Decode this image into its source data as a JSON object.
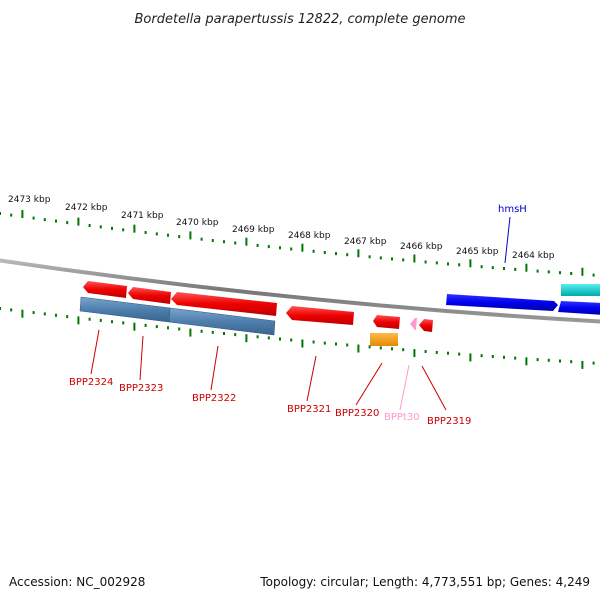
{
  "map": {
    "title": "Bordetella parapertussis 12822, complete genome",
    "footer": {
      "accession": "Accession: NC_002928",
      "summary": "Topology: circular; Length: 4,773,551 bp; Genes: 4,249"
    },
    "ruler_labels": [
      "2473 kbp",
      "2472 kbp",
      "2471 kbp",
      "2470 kbp",
      "2469 kbp",
      "2468 kbp",
      "2467 kbp",
      "2466 kbp",
      "2465 kbp",
      "2464 kbp"
    ],
    "features": [
      {
        "label": "BPP2324",
        "color": "#cc0000",
        "strand": "minus"
      },
      {
        "label": "BPP2323",
        "color": "#cc0000",
        "strand": "minus"
      },
      {
        "label": "BPP2322",
        "color": "#cc0000",
        "strand": "minus"
      },
      {
        "label": "BPP2321",
        "color": "#cc0000",
        "strand": "minus"
      },
      {
        "label": "BPP2320",
        "color": "#cc0000",
        "strand": "minus"
      },
      {
        "label": "BPPt30",
        "color": "#ff99cc",
        "strand": "minus"
      },
      {
        "label": "BPP2319",
        "color": "#cc0000",
        "strand": "minus"
      },
      {
        "label": "hmsH",
        "color": "#0000cc",
        "strand": "plus"
      }
    ],
    "track_colors": {
      "forward_gene": "#0000ee",
      "reverse_gene": "#ee0000",
      "cds_feature": "#4f7fae",
      "trna": "#ff9900",
      "misc_feature": "#00cccc",
      "backbone": "#888888",
      "ticks": "#007700"
    }
  }
}
